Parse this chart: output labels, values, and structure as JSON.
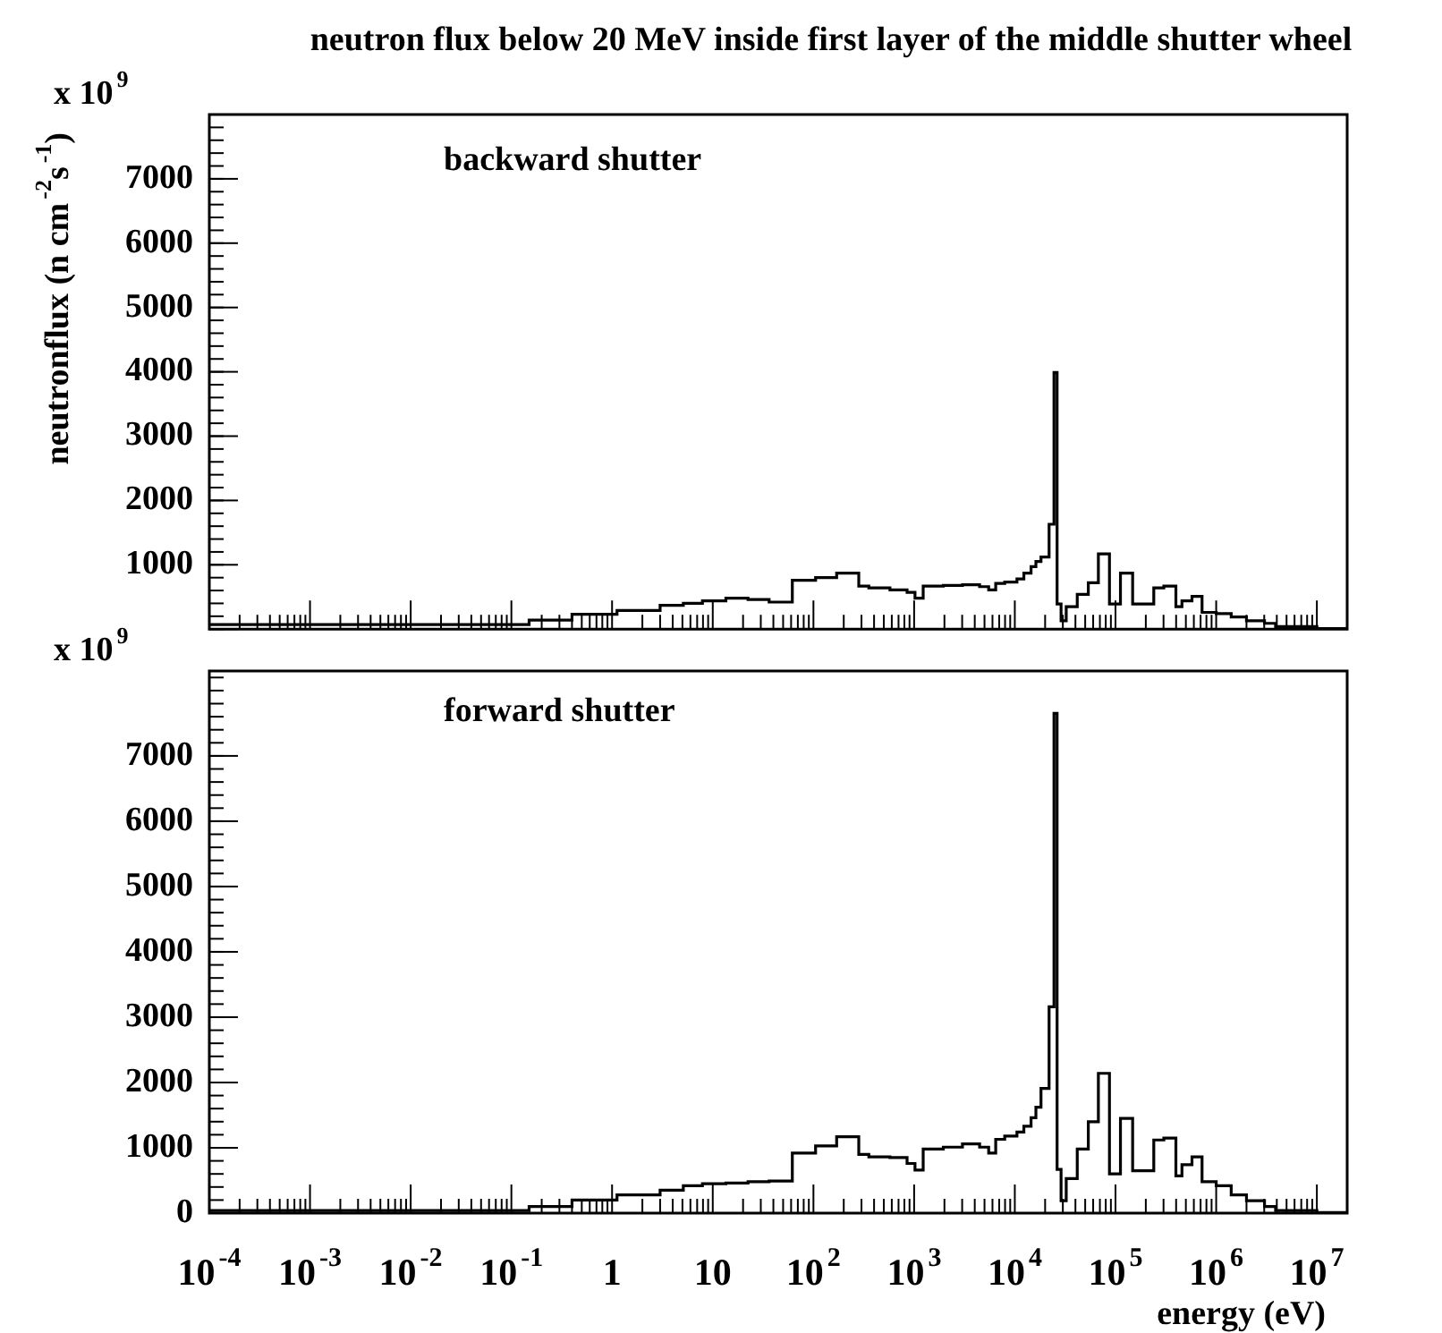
{
  "chart_data": [
    {
      "type": "histogram",
      "title": "neutron flux below 20 MeV inside first layer of the middle shutter wheel",
      "ylabel": "neutronflux (n cm$^{-2}$s$^{-1}$)",
      "annotations": [
        "x 10$^{9}$",
        "backward shutter"
      ],
      "bins": [
        0.0001,
        0.15,
        0.4,
        1.12,
        3.0,
        5.1,
        7.9,
        13.5,
        22.4,
        36.3,
        61.7,
        105,
        170,
        282,
        355,
        575,
        851,
        1020,
        1230,
        1950,
        3020,
        4470,
        5500,
        6460,
        7940,
        10500,
        12300,
        14500,
        16200,
        18200,
        21900,
        24500,
        26300,
        28800,
        32400,
        41700,
        53700,
        67600,
        87100,
        112000,
        148000,
        240000,
        302000,
        398000,
        457000,
        575000,
        724000,
        1000000,
        1410000,
        2000000,
        3020000,
        3890000,
        10000000,
        20000000
      ],
      "values": [
        70,
        140,
        230,
        290,
        370,
        400,
        440,
        480,
        460,
        420,
        760,
        800,
        870,
        670,
        640,
        610,
        570,
        480,
        670,
        680,
        690,
        660,
        610,
        710,
        730,
        780,
        870,
        970,
        1050,
        1120,
        1630,
        3990,
        390,
        130,
        350,
        540,
        720,
        1170,
        390,
        870,
        390,
        640,
        670,
        350,
        440,
        510,
        260,
        240,
        190,
        130,
        90,
        40,
        10
      ],
      "color": "#000000",
      "log": "x",
      "xlim": [
        0.0001,
        20000000
      ],
      "xticks": [
        {
          "value": 0.0001,
          "label": null
        },
        {
          "value": 0.001,
          "label": null
        },
        {
          "value": 0.01,
          "label": null
        },
        {
          "value": 0.1,
          "label": null
        },
        {
          "value": 1,
          "label": null
        },
        {
          "value": 10,
          "label": null
        },
        {
          "value": 100,
          "label": null
        },
        {
          "value": 1000,
          "label": null
        },
        {
          "value": 10000,
          "label": null
        },
        {
          "value": 100000,
          "label": null
        },
        {
          "value": 1000000,
          "label": null
        },
        {
          "value": 10000000,
          "label": null
        }
      ],
      "ylim": [
        0,
        8000
      ],
      "yticks": [
        {
          "value": 0,
          "label": null
        },
        1000,
        2000,
        3000,
        4000,
        5000,
        6000,
        7000
      ],
      "tick_labels": "y"
    },
    {
      "type": "histogram",
      "xlabel": "energy (eV)",
      "annotations": [
        "x 10$^{9}$",
        "forward shutter"
      ],
      "bins": [
        0.0001,
        0.15,
        0.4,
        1.12,
        3.0,
        5.1,
        7.9,
        13.5,
        22.4,
        36.3,
        61.7,
        105,
        170,
        282,
        355,
        575,
        851,
        1020,
        1230,
        1950,
        3020,
        4470,
        5500,
        6460,
        7940,
        10500,
        12300,
        14500,
        16200,
        18200,
        21900,
        24500,
        26300,
        28800,
        32400,
        41700,
        53700,
        67600,
        87100,
        112000,
        148000,
        240000,
        302000,
        398000,
        457000,
        575000,
        724000,
        1000000,
        1410000,
        2000000,
        3020000,
        3890000,
        10000000,
        20000000
      ],
      "values": [
        40,
        100,
        200,
        280,
        350,
        420,
        450,
        460,
        480,
        490,
        920,
        1030,
        1170,
        900,
        860,
        850,
        760,
        660,
        980,
        1010,
        1060,
        1010,
        920,
        1130,
        1180,
        1240,
        1330,
        1460,
        1620,
        1910,
        3160,
        7650,
        670,
        190,
        530,
        980,
        1400,
        2140,
        600,
        1450,
        650,
        1120,
        1150,
        570,
        740,
        860,
        480,
        420,
        280,
        190,
        100,
        40,
        10
      ],
      "color": "#000000",
      "log": "x",
      "xlim": [
        0.0001,
        20000000
      ],
      "xticks": [
        {
          "value": 0.0001,
          "label": "10$^{-4}$"
        },
        {
          "value": 0.001,
          "label": "10$^{-3}$"
        },
        {
          "value": 0.01,
          "label": "10$^{-2}$"
        },
        {
          "value": 0.1,
          "label": "10$^{-1}$"
        },
        1,
        10,
        {
          "value": 100,
          "label": "10$^{2}$"
        },
        {
          "value": 1000,
          "label": "10$^{3}$"
        },
        {
          "value": 10000,
          "label": "10$^{4}$"
        },
        {
          "value": 100000,
          "label": "10$^{5}$"
        },
        {
          "value": 1000000,
          "label": "10$^{6}$"
        },
        {
          "value": 10000000,
          "label": "10$^{7}$"
        }
      ],
      "ylim": [
        0,
        8300
      ],
      "yticks": [
        0,
        1000,
        2000,
        3000,
        4000,
        5000,
        6000,
        7000
      ]
    }
  ]
}
